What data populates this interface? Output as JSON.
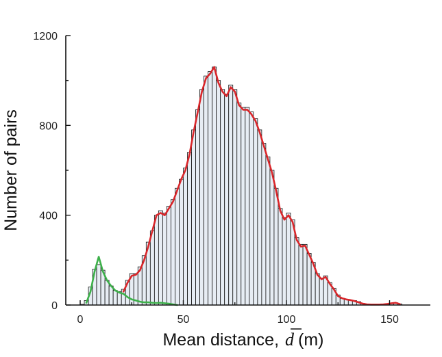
{
  "chart_data": {
    "type": "bar",
    "title": "",
    "xlabel": "Mean distance,",
    "xlabel_symbol": "d",
    "xlabel_unit": "(m)",
    "ylabel": "Number of pairs",
    "xlim": [
      -3,
      170
    ],
    "ylim": [
      0,
      1200
    ],
    "xticks": [
      0,
      50,
      100,
      150
    ],
    "yticks": [
      0,
      400,
      800,
      1200
    ],
    "grid": false,
    "legend": "none",
    "colors": {
      "bars_fill": "#e7edf4",
      "bars_edge": "#111111",
      "series_red": "#d9262a",
      "series_green": "#3db04a"
    },
    "bin_width": 2,
    "bins_x": [
      0,
      2,
      4,
      6,
      8,
      10,
      12,
      14,
      16,
      18,
      20,
      22,
      24,
      26,
      28,
      30,
      32,
      34,
      36,
      38,
      40,
      42,
      44,
      46,
      48,
      50,
      52,
      54,
      56,
      58,
      60,
      62,
      64,
      66,
      68,
      70,
      72,
      74,
      76,
      78,
      80,
      82,
      84,
      86,
      88,
      90,
      92,
      94,
      96,
      98,
      100,
      102,
      104,
      106,
      108,
      110,
      112,
      114,
      116,
      118,
      120,
      122,
      124,
      126,
      128,
      130,
      132,
      134,
      136,
      138,
      140,
      142,
      144,
      146,
      148,
      150,
      152,
      154
    ],
    "bins_count": [
      3,
      20,
      80,
      160,
      180,
      155,
      110,
      85,
      65,
      60,
      70,
      110,
      140,
      140,
      170,
      220,
      280,
      330,
      400,
      420,
      410,
      440,
      470,
      520,
      560,
      610,
      680,
      780,
      870,
      960,
      1020,
      1040,
      1060,
      1000,
      960,
      940,
      980,
      960,
      900,
      880,
      880,
      860,
      830,
      780,
      720,
      660,
      600,
      520,
      430,
      390,
      410,
      380,
      300,
      270,
      270,
      230,
      190,
      140,
      120,
      130,
      100,
      75,
      45,
      30,
      25,
      22,
      20,
      15,
      7,
      4,
      3,
      2,
      2,
      2,
      3,
      8,
      10,
      5
    ],
    "series": [
      {
        "name": "",
        "color": "red",
        "x": [
          20,
          22,
          24,
          26,
          28,
          30,
          32,
          34,
          36,
          38,
          40,
          42,
          44,
          46,
          48,
          50,
          52,
          54,
          56,
          58,
          60,
          62,
          64,
          66,
          68,
          70,
          72,
          74,
          76,
          78,
          80,
          82,
          84,
          86,
          88,
          90,
          92,
          94,
          96,
          98,
          100,
          102,
          104,
          106,
          108,
          110,
          112,
          114,
          116,
          118,
          120,
          122,
          124,
          126,
          128,
          130,
          132,
          134,
          136,
          138,
          140,
          142,
          144,
          146,
          148,
          150,
          152,
          154
        ],
        "y": [
          60,
          100,
          130,
          135,
          155,
          200,
          260,
          330,
          400,
          410,
          400,
          430,
          460,
          510,
          560,
          600,
          670,
          770,
          860,
          950,
          1010,
          1030,
          1060,
          990,
          950,
          930,
          970,
          950,
          890,
          870,
          870,
          850,
          820,
          770,
          710,
          650,
          590,
          510,
          420,
          380,
          400,
          370,
          290,
          260,
          265,
          225,
          185,
          135,
          115,
          125,
          95,
          70,
          40,
          30,
          25,
          22,
          18,
          12,
          6,
          3,
          2,
          2,
          2,
          3,
          5,
          8,
          10,
          4
        ]
      },
      {
        "name": "",
        "color": "green",
        "x": [
          2,
          4,
          6,
          8,
          10,
          12,
          14,
          16,
          18,
          20,
          22,
          24,
          26,
          28,
          30,
          32,
          34,
          36,
          38,
          40,
          42,
          44,
          46
        ],
        "y": [
          10,
          60,
          150,
          215,
          150,
          110,
          85,
          65,
          55,
          50,
          35,
          25,
          20,
          15,
          12,
          12,
          10,
          9,
          10,
          8,
          6,
          3,
          0
        ]
      }
    ]
  }
}
